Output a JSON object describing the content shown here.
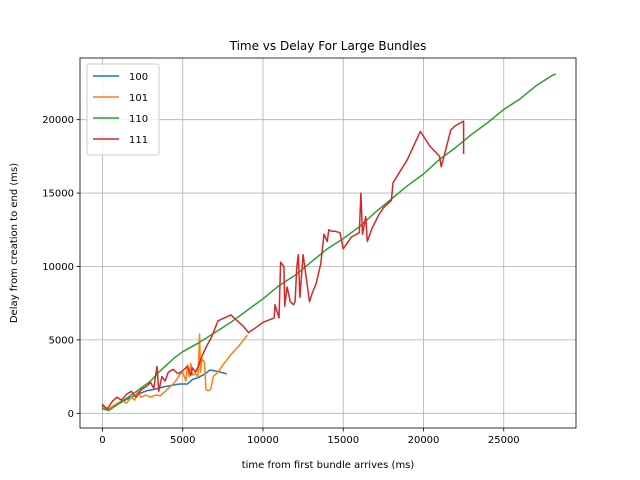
{
  "chart_data": {
    "type": "line",
    "title": "Time vs Delay For Large Bundles",
    "xlabel": "time from first bundle arrives (ms)",
    "ylabel": "Delay from creation to end (ms)",
    "xlim": [
      -1400,
      29500
    ],
    "ylim": [
      -1000,
      24200
    ],
    "xticks": [
      0,
      5000,
      10000,
      15000,
      20000,
      25000
    ],
    "yticks": [
      0,
      5000,
      10000,
      15000,
      20000
    ],
    "grid": true,
    "legend_position": "top-left",
    "series": [
      {
        "name": "100",
        "color": "#1f77b4",
        "points": [
          [
            0,
            500
          ],
          [
            300,
            250
          ],
          [
            700,
            450
          ],
          [
            1100,
            700
          ],
          [
            1500,
            950
          ],
          [
            1900,
            1150
          ],
          [
            2300,
            1350
          ],
          [
            2800,
            1550
          ],
          [
            3300,
            1650
          ],
          [
            3800,
            1800
          ],
          [
            4300,
            1900
          ],
          [
            4800,
            2000
          ],
          [
            5300,
            2000
          ],
          [
            5600,
            2300
          ],
          [
            6000,
            2450
          ],
          [
            6400,
            2700
          ],
          [
            6700,
            2950
          ],
          [
            7200,
            2850
          ],
          [
            7700,
            2700
          ]
        ]
      },
      {
        "name": "101",
        "color": "#ff7f0e",
        "points": [
          [
            0,
            400
          ],
          [
            400,
            300
          ],
          [
            800,
            600
          ],
          [
            1200,
            850
          ],
          [
            1500,
            700
          ],
          [
            1800,
            1100
          ],
          [
            2000,
            900
          ],
          [
            2200,
            1500
          ],
          [
            2400,
            1100
          ],
          [
            2700,
            1250
          ],
          [
            3000,
            1100
          ],
          [
            3300,
            1250
          ],
          [
            3600,
            1200
          ],
          [
            3900,
            1500
          ],
          [
            4200,
            1800
          ],
          [
            4500,
            2100
          ],
          [
            4800,
            2600
          ],
          [
            5000,
            2800
          ],
          [
            5200,
            2200
          ],
          [
            5300,
            3300
          ],
          [
            5400,
            2500
          ],
          [
            5500,
            3400
          ],
          [
            5600,
            2600
          ],
          [
            5800,
            2700
          ],
          [
            5950,
            2500
          ],
          [
            6050,
            5400
          ],
          [
            6100,
            2800
          ],
          [
            6200,
            3700
          ],
          [
            6350,
            3500
          ],
          [
            6450,
            1600
          ],
          [
            6600,
            1550
          ],
          [
            6750,
            1650
          ],
          [
            6900,
            2500
          ],
          [
            7200,
            2800
          ],
          [
            7500,
            3300
          ],
          [
            8000,
            4000
          ],
          [
            8500,
            4600
          ],
          [
            9000,
            5300
          ]
        ]
      },
      {
        "name": "110",
        "color": "#2ca02c",
        "points": [
          [
            0,
            300
          ],
          [
            400,
            200
          ],
          [
            800,
            500
          ],
          [
            1200,
            800
          ],
          [
            1600,
            1100
          ],
          [
            2000,
            1400
          ],
          [
            2500,
            1800
          ],
          [
            3000,
            2200
          ],
          [
            3500,
            2800
          ],
          [
            4000,
            3300
          ],
          [
            4500,
            3800
          ],
          [
            5000,
            4200
          ],
          [
            5500,
            4500
          ],
          [
            6000,
            4800
          ],
          [
            7000,
            5500
          ],
          [
            8000,
            6200
          ],
          [
            9000,
            7000
          ],
          [
            10000,
            7800
          ],
          [
            11000,
            8700
          ],
          [
            12000,
            9400
          ],
          [
            13000,
            10300
          ],
          [
            14000,
            11200
          ],
          [
            15000,
            11900
          ],
          [
            16000,
            12700
          ],
          [
            17000,
            13700
          ],
          [
            18000,
            14600
          ],
          [
            19000,
            15500
          ],
          [
            20000,
            16300
          ],
          [
            21000,
            17300
          ],
          [
            22000,
            18100
          ],
          [
            23000,
            19000
          ],
          [
            24000,
            19800
          ],
          [
            25000,
            20700
          ],
          [
            26000,
            21400
          ],
          [
            27000,
            22300
          ],
          [
            28000,
            23000
          ],
          [
            28200,
            23100
          ]
        ]
      },
      {
        "name": "111",
        "color": "#d62728",
        "points": [
          [
            0,
            600
          ],
          [
            300,
            300
          ],
          [
            600,
            800
          ],
          [
            900,
            1100
          ],
          [
            1200,
            900
          ],
          [
            1500,
            1300
          ],
          [
            1800,
            1500
          ],
          [
            2100,
            1100
          ],
          [
            2400,
            1600
          ],
          [
            2700,
            1800
          ],
          [
            3000,
            2100
          ],
          [
            3200,
            1700
          ],
          [
            3400,
            3200
          ],
          [
            3500,
            1500
          ],
          [
            3700,
            2500
          ],
          [
            3900,
            2200
          ],
          [
            4100,
            2800
          ],
          [
            4400,
            3000
          ],
          [
            4700,
            2700
          ],
          [
            5000,
            2900
          ],
          [
            5300,
            3200
          ],
          [
            5500,
            2600
          ],
          [
            5600,
            3100
          ],
          [
            5800,
            2800
          ],
          [
            6000,
            3300
          ],
          [
            6200,
            3900
          ],
          [
            6500,
            4600
          ],
          [
            6800,
            5200
          ],
          [
            7200,
            6300
          ],
          [
            8000,
            6700
          ],
          [
            8800,
            5900
          ],
          [
            9100,
            5500
          ],
          [
            9500,
            5800
          ],
          [
            10000,
            6200
          ],
          [
            10700,
            6500
          ],
          [
            10750,
            7400
          ],
          [
            11000,
            6500
          ],
          [
            11100,
            10300
          ],
          [
            11300,
            10000
          ],
          [
            11350,
            7300
          ],
          [
            11500,
            8600
          ],
          [
            11700,
            7600
          ],
          [
            11900,
            7400
          ],
          [
            12000,
            7600
          ],
          [
            12100,
            9900
          ],
          [
            12200,
            10800
          ],
          [
            12300,
            7900
          ],
          [
            12500,
            10800
          ],
          [
            12700,
            9200
          ],
          [
            12900,
            7600
          ],
          [
            13100,
            8300
          ],
          [
            13300,
            8800
          ],
          [
            13600,
            10200
          ],
          [
            13800,
            12200
          ],
          [
            14000,
            11700
          ],
          [
            14100,
            12500
          ],
          [
            14300,
            12400
          ],
          [
            14500,
            12400
          ],
          [
            14800,
            12300
          ],
          [
            15000,
            11200
          ],
          [
            15500,
            12000
          ],
          [
            16000,
            12300
          ],
          [
            16100,
            15000
          ],
          [
            16200,
            12200
          ],
          [
            16400,
            13400
          ],
          [
            16500,
            11700
          ],
          [
            16800,
            12600
          ],
          [
            17200,
            13500
          ],
          [
            17500,
            14000
          ],
          [
            18000,
            14500
          ],
          [
            18100,
            15700
          ],
          [
            19000,
            17300
          ],
          [
            19800,
            19200
          ],
          [
            20400,
            18200
          ],
          [
            21000,
            17500
          ],
          [
            21100,
            16800
          ],
          [
            21300,
            17600
          ],
          [
            21700,
            19300
          ],
          [
            22000,
            19600
          ],
          [
            22500,
            19900
          ],
          [
            22500,
            17700
          ]
        ]
      }
    ]
  }
}
